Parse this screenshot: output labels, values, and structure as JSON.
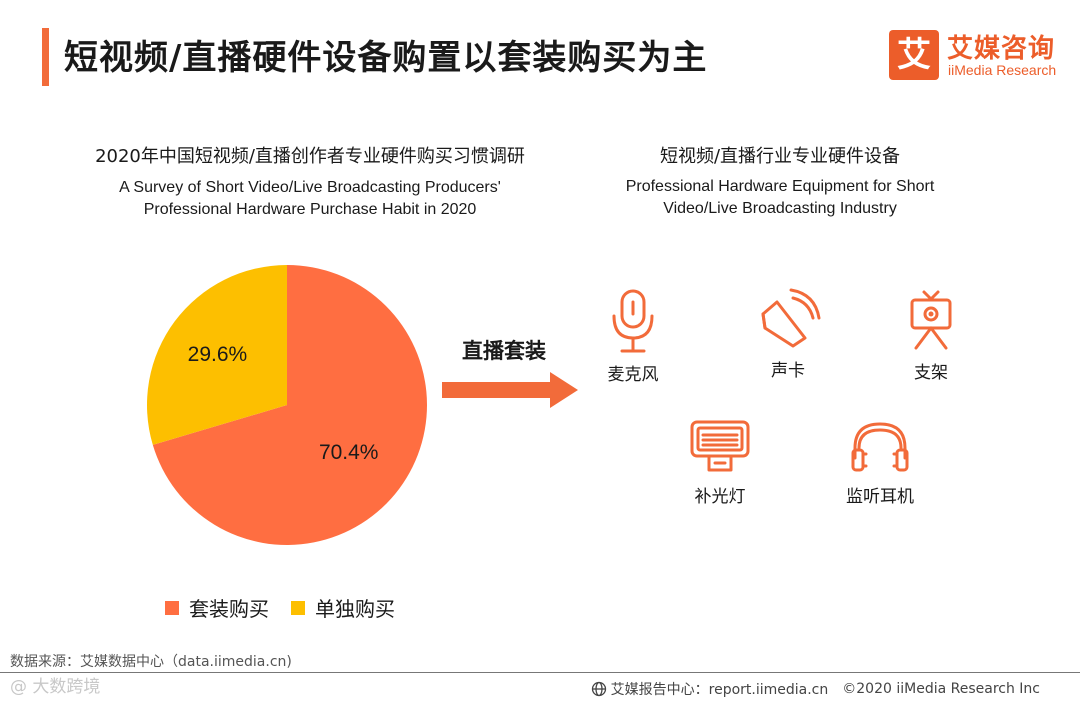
{
  "header": {
    "title": "短视频/直播硬件设备购置以套装购买为主"
  },
  "logo": {
    "mark": "艾",
    "name_cn": "艾媒咨询",
    "name_en": "iiMedia Research"
  },
  "left_panel": {
    "subtitle_cn": "2020年中国短视频/直播创作者专业硬件购买习惯调研",
    "subtitle_en_line1": "A Survey of Short Video/Live Broadcasting Producers'",
    "subtitle_en_line2": "Professional Hardware Purchase Habit in 2020"
  },
  "chart_data": {
    "type": "pie",
    "categories": [
      "套装购买",
      "单独购买"
    ],
    "values": [
      70.4,
      29.6
    ],
    "labels": [
      "70.4%",
      "29.6%"
    ],
    "unit": "%",
    "colors": [
      "#ff6e41",
      "#fdbf00"
    ],
    "legend_position": "bottom"
  },
  "arrow": {
    "label": "直播套装"
  },
  "right_panel": {
    "subtitle_cn": "短视频/直播行业专业硬件设备",
    "subtitle_en_line1": "Professional Hardware Equipment for Short",
    "subtitle_en_line2": "Video/Live Broadcasting Industry",
    "items": [
      {
        "label": "麦克风",
        "icon": "microphone-icon"
      },
      {
        "label": "声卡",
        "icon": "sound-card-icon"
      },
      {
        "label": "支架",
        "icon": "tripod-camera-icon"
      },
      {
        "label": "补光灯",
        "icon": "fill-light-icon"
      },
      {
        "label": "监听耳机",
        "icon": "headphones-icon"
      }
    ]
  },
  "footer": {
    "source": "数据来源：艾媒数据中心（data.iimedia.cn)",
    "watermark": "@ 大数跨境",
    "report_center": "艾媒报告中心：report.iimedia.cn",
    "copyright": "©2020 iiMedia Research Inc"
  },
  "colors": {
    "accent": "#f26b3a",
    "icon_stroke": "#f26b3a"
  }
}
